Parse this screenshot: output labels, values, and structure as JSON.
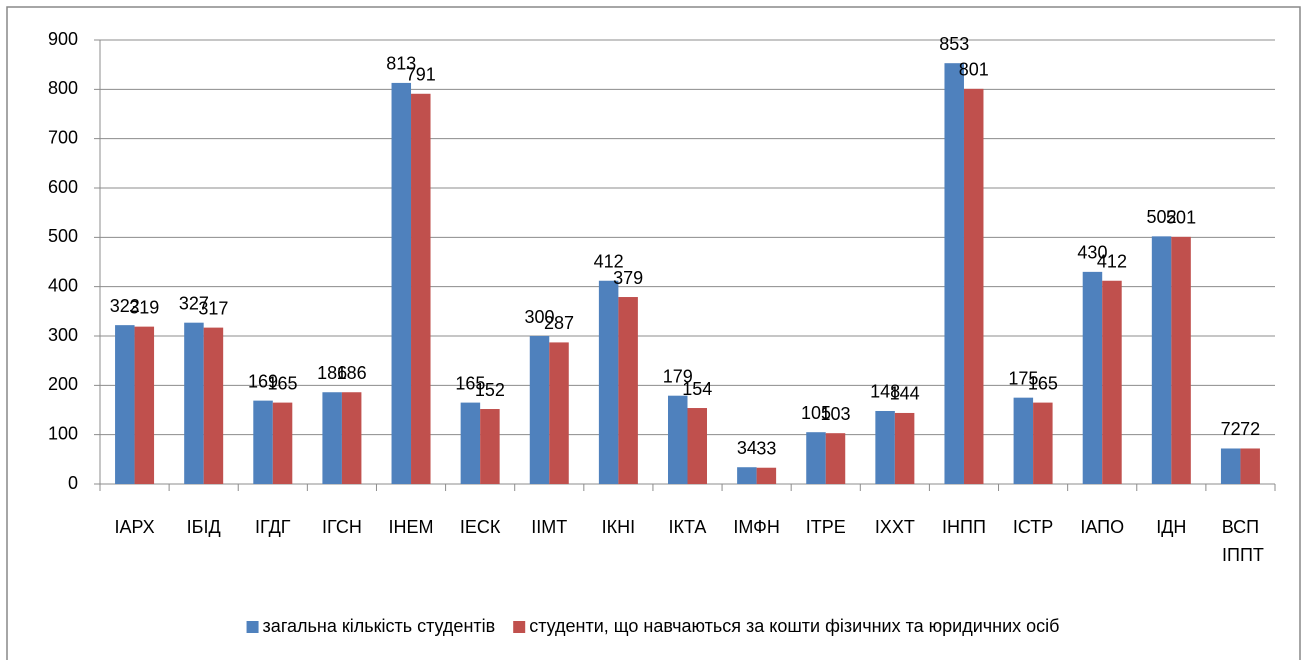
{
  "chart_data": {
    "type": "bar",
    "categories": [
      "ІАРХ",
      "ІБІД",
      "ІГДГ",
      "ІГСН",
      "ІНЕМ",
      "ІЕСК",
      "ІІМТ",
      "ІКНІ",
      "ІКТА",
      "ІМФН",
      "ІТРЕ",
      "ІХХТ",
      "ІНПП",
      "ІСТР",
      "ІАПО",
      "ІДН",
      "ВСП ІППТ"
    ],
    "series": [
      {
        "name": "загальна кількість студентів",
        "color": "#4f81bd",
        "values": [
          322,
          327,
          169,
          186,
          813,
          165,
          300,
          412,
          179,
          34,
          105,
          148,
          853,
          175,
          430,
          502,
          72
        ]
      },
      {
        "name": "студенти, що навчаються за кошти фізичних та юридичних осіб",
        "color": "#c0504d",
        "values": [
          319,
          317,
          165,
          186,
          791,
          152,
          287,
          379,
          154,
          33,
          103,
          144,
          801,
          165,
          412,
          501,
          72
        ]
      }
    ],
    "ylim": [
      0,
      900
    ],
    "yticks": [
      0,
      100,
      200,
      300,
      400,
      500,
      600,
      700,
      800,
      900
    ],
    "grid": true,
    "legend": "bottom"
  }
}
